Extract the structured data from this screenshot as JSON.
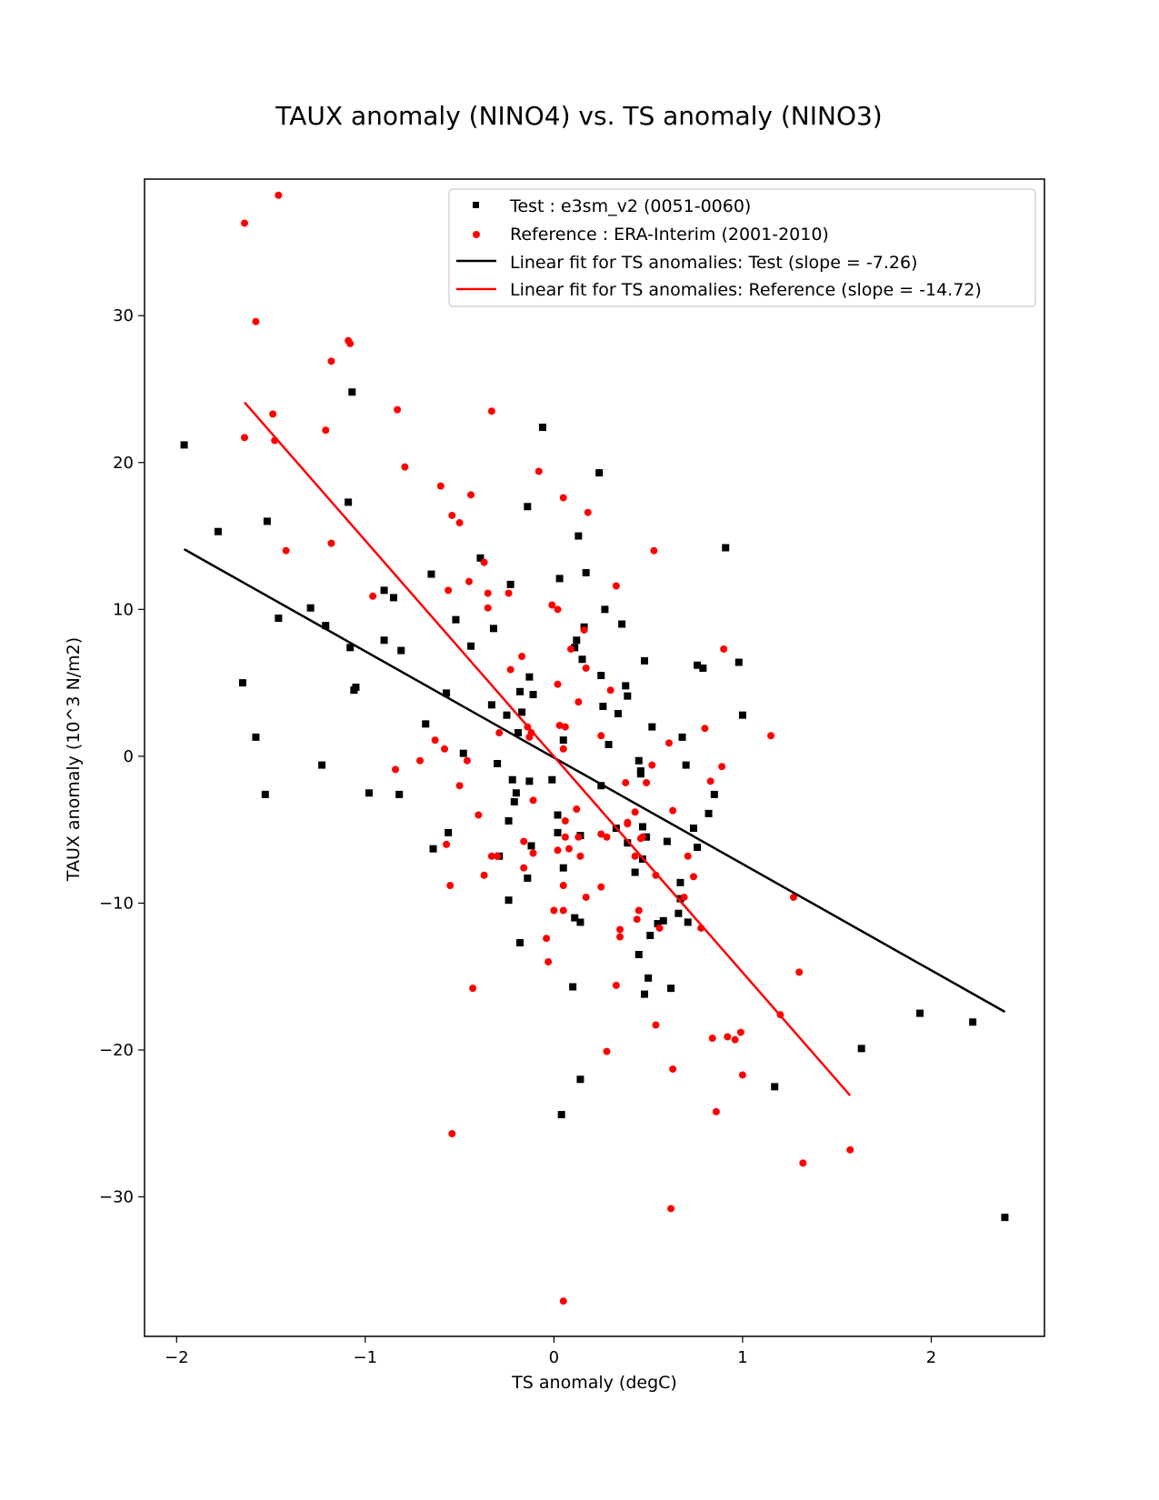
{
  "chart_data": {
    "type": "scatter",
    "title": "TAUX anomaly (NINO4) vs. TS anomaly (NINO3)",
    "xlabel": "TS anomaly (degC)",
    "ylabel": "TAUX anomaly (10^3 N/m2)",
    "xlim": [
      -2.17,
      2.6
    ],
    "ylim": [
      -39.5,
      39.3
    ],
    "xticks": [
      -2,
      -1,
      0,
      1,
      2
    ],
    "xtick_labels": [
      "−2",
      "−1",
      "0",
      "1",
      "2"
    ],
    "yticks": [
      -30,
      -20,
      -10,
      0,
      10,
      20,
      30
    ],
    "ytick_labels": [
      "−30",
      "−20",
      "−10",
      "0",
      "10",
      "20",
      "30"
    ],
    "grid": false,
    "legend_position": "top-right",
    "series": [
      {
        "name": "Test : e3sm_v2 (0051-0060)",
        "color": "#000000",
        "marker": "square",
        "points": [
          [
            -1.96,
            21.2
          ],
          [
            -1.78,
            15.3
          ],
          [
            -1.65,
            5.0
          ],
          [
            -1.58,
            1.3
          ],
          [
            -1.53,
            -2.6
          ],
          [
            -1.52,
            16.0
          ],
          [
            -1.46,
            9.4
          ],
          [
            -1.29,
            10.1
          ],
          [
            -1.23,
            -0.6
          ],
          [
            -1.21,
            8.9
          ],
          [
            -1.09,
            17.3
          ],
          [
            -1.08,
            7.4
          ],
          [
            -1.07,
            24.8
          ],
          [
            -1.06,
            4.5
          ],
          [
            -1.05,
            4.7
          ],
          [
            -0.98,
            -2.5
          ],
          [
            -0.9,
            7.9
          ],
          [
            -0.9,
            11.3
          ],
          [
            -0.85,
            10.8
          ],
          [
            -0.82,
            -2.6
          ],
          [
            -0.81,
            7.2
          ],
          [
            -0.68,
            2.2
          ],
          [
            -0.65,
            12.4
          ],
          [
            -0.64,
            -6.3
          ],
          [
            -0.57,
            4.3
          ],
          [
            -0.56,
            -5.2
          ],
          [
            -0.52,
            9.3
          ],
          [
            -0.48,
            0.2
          ],
          [
            -0.44,
            7.5
          ],
          [
            -0.39,
            13.5
          ],
          [
            -0.33,
            3.5
          ],
          [
            -0.32,
            8.7
          ],
          [
            -0.3,
            -0.5
          ],
          [
            -0.29,
            -6.8
          ],
          [
            -0.25,
            2.8
          ],
          [
            -0.24,
            -4.4
          ],
          [
            -0.24,
            -9.8
          ],
          [
            -0.23,
            11.7
          ],
          [
            -0.22,
            -1.6
          ],
          [
            -0.2,
            -2.5
          ],
          [
            -0.21,
            -3.1
          ],
          [
            -0.19,
            1.6
          ],
          [
            -0.18,
            4.4
          ],
          [
            -0.18,
            -12.7
          ],
          [
            -0.17,
            3.0
          ],
          [
            -0.14,
            17.0
          ],
          [
            -0.14,
            -8.3
          ],
          [
            -0.13,
            5.4
          ],
          [
            -0.13,
            -1.7
          ],
          [
            -0.12,
            -6.1
          ],
          [
            -0.11,
            4.2
          ],
          [
            -0.06,
            22.4
          ],
          [
            -0.01,
            -1.6
          ],
          [
            0.02,
            -4.0
          ],
          [
            0.02,
            -5.2
          ],
          [
            0.03,
            12.1
          ],
          [
            0.04,
            -24.4
          ],
          [
            0.05,
            1.1
          ],
          [
            0.05,
            -7.6
          ],
          [
            0.1,
            -15.7
          ],
          [
            0.11,
            -11.0
          ],
          [
            0.11,
            7.4
          ],
          [
            0.12,
            7.9
          ],
          [
            0.13,
            15.0
          ],
          [
            0.14,
            -11.3
          ],
          [
            0.14,
            -5.4
          ],
          [
            0.15,
            6.6
          ],
          [
            0.14,
            -22.0
          ],
          [
            0.16,
            8.8
          ],
          [
            0.17,
            12.5
          ],
          [
            0.24,
            19.3
          ],
          [
            0.25,
            -2.0
          ],
          [
            0.25,
            5.5
          ],
          [
            0.26,
            3.4
          ],
          [
            0.27,
            10.0
          ],
          [
            0.29,
            0.8
          ],
          [
            0.33,
            -4.9
          ],
          [
            0.34,
            2.9
          ],
          [
            0.36,
            9.0
          ],
          [
            0.38,
            4.8
          ],
          [
            0.39,
            -5.9
          ],
          [
            0.39,
            4.1
          ],
          [
            0.43,
            -7.9
          ],
          [
            0.45,
            -0.3
          ],
          [
            0.45,
            -13.5
          ],
          [
            0.46,
            -1.0
          ],
          [
            0.46,
            -1.2
          ],
          [
            0.47,
            -7.0
          ],
          [
            0.47,
            -4.8
          ],
          [
            0.48,
            6.5
          ],
          [
            0.48,
            -16.2
          ],
          [
            0.49,
            -5.5
          ],
          [
            0.5,
            -15.1
          ],
          [
            0.51,
            -12.2
          ],
          [
            0.52,
            2.0
          ],
          [
            0.55,
            -11.4
          ],
          [
            0.58,
            -11.2
          ],
          [
            0.6,
            -5.8
          ],
          [
            0.62,
            -15.8
          ],
          [
            0.66,
            -10.7
          ],
          [
            0.67,
            -9.7
          ],
          [
            0.67,
            -8.6
          ],
          [
            0.68,
            1.3
          ],
          [
            0.7,
            -0.6
          ],
          [
            0.71,
            -11.3
          ],
          [
            0.74,
            -4.9
          ],
          [
            0.76,
            -6.2
          ],
          [
            0.76,
            6.2
          ],
          [
            0.79,
            6.0
          ],
          [
            0.82,
            -3.9
          ],
          [
            0.85,
            -2.6
          ],
          [
            0.91,
            14.2
          ],
          [
            0.98,
            6.4
          ],
          [
            1.0,
            2.8
          ],
          [
            1.17,
            -22.5
          ],
          [
            1.63,
            -19.9
          ],
          [
            1.94,
            -17.5
          ],
          [
            2.22,
            -18.1
          ],
          [
            2.39,
            -31.4
          ]
        ]
      },
      {
        "name": "Reference : ERA-Interim (2001-2010)",
        "color": "#ff0000",
        "marker": "circle",
        "points": [
          [
            -1.64,
            36.3
          ],
          [
            -1.64,
            21.7
          ],
          [
            -1.58,
            29.6
          ],
          [
            -1.49,
            23.3
          ],
          [
            -1.48,
            21.5
          ],
          [
            -1.42,
            14.0
          ],
          [
            -1.46,
            38.2
          ],
          [
            -1.18,
            26.9
          ],
          [
            -1.18,
            14.5
          ],
          [
            -1.21,
            22.2
          ],
          [
            -1.09,
            28.3
          ],
          [
            -1.08,
            28.1
          ],
          [
            -0.96,
            10.9
          ],
          [
            -0.83,
            23.6
          ],
          [
            -0.84,
            -0.9
          ],
          [
            -0.79,
            19.7
          ],
          [
            -0.71,
            -0.3
          ],
          [
            -0.63,
            1.1
          ],
          [
            -0.6,
            18.4
          ],
          [
            -0.58,
            0.5
          ],
          [
            -0.57,
            -6.0
          ],
          [
            -0.56,
            11.3
          ],
          [
            -0.55,
            -8.8
          ],
          [
            -0.54,
            16.4
          ],
          [
            -0.54,
            -25.7
          ],
          [
            -0.5,
            15.9
          ],
          [
            -0.5,
            -2.0
          ],
          [
            -0.46,
            -0.3
          ],
          [
            -0.45,
            11.9
          ],
          [
            -0.44,
            17.8
          ],
          [
            -0.43,
            -15.8
          ],
          [
            -0.4,
            -4.0
          ],
          [
            -0.37,
            13.2
          ],
          [
            -0.37,
            -8.1
          ],
          [
            -0.35,
            11.1
          ],
          [
            -0.35,
            10.1
          ],
          [
            -0.33,
            23.5
          ],
          [
            -0.33,
            -6.8
          ],
          [
            -0.3,
            -6.8
          ],
          [
            -0.29,
            1.6
          ],
          [
            -0.24,
            11.1
          ],
          [
            -0.23,
            5.9
          ],
          [
            -0.17,
            6.8
          ],
          [
            -0.16,
            -7.6
          ],
          [
            -0.16,
            -5.8
          ],
          [
            -0.14,
            2.0
          ],
          [
            -0.13,
            1.3
          ],
          [
            -0.12,
            1.6
          ],
          [
            -0.11,
            -3.0
          ],
          [
            -0.11,
            -6.6
          ],
          [
            -0.08,
            19.4
          ],
          [
            -0.04,
            -12.4
          ],
          [
            -0.03,
            -14.0
          ],
          [
            -0.01,
            10.3
          ],
          [
            0.0,
            -10.5
          ],
          [
            0.02,
            10.0
          ],
          [
            0.02,
            4.9
          ],
          [
            0.02,
            -6.4
          ],
          [
            0.03,
            2.1
          ],
          [
            0.05,
            17.6
          ],
          [
            0.05,
            0.5
          ],
          [
            0.06,
            -4.4
          ],
          [
            0.06,
            -5.5
          ],
          [
            0.05,
            -8.8
          ],
          [
            0.05,
            -10.5
          ],
          [
            0.06,
            2.0
          ],
          [
            0.08,
            -6.3
          ],
          [
            0.09,
            7.3
          ],
          [
            0.05,
            -37.1
          ],
          [
            0.12,
            -3.6
          ],
          [
            0.13,
            -5.5
          ],
          [
            0.13,
            3.7
          ],
          [
            0.14,
            -6.8
          ],
          [
            0.16,
            8.6
          ],
          [
            0.17,
            -9.6
          ],
          [
            0.17,
            6.0
          ],
          [
            0.18,
            16.6
          ],
          [
            0.25,
            1.4
          ],
          [
            0.25,
            -5.3
          ],
          [
            0.25,
            -8.9
          ],
          [
            0.28,
            -5.5
          ],
          [
            0.28,
            -20.1
          ],
          [
            0.3,
            4.5
          ],
          [
            0.33,
            11.6
          ],
          [
            0.33,
            -15.6
          ],
          [
            0.35,
            -12.3
          ],
          [
            0.35,
            -11.8
          ],
          [
            0.38,
            -1.8
          ],
          [
            0.39,
            -4.5
          ],
          [
            0.39,
            -4.6
          ],
          [
            0.43,
            -6.8
          ],
          [
            0.43,
            -3.8
          ],
          [
            0.44,
            -11.1
          ],
          [
            0.45,
            -10.5
          ],
          [
            0.46,
            -5.6
          ],
          [
            0.47,
            -5.5
          ],
          [
            0.49,
            -1.8
          ],
          [
            0.52,
            -0.6
          ],
          [
            0.53,
            14.0
          ],
          [
            0.54,
            -8.1
          ],
          [
            0.54,
            -18.3
          ],
          [
            0.56,
            -11.7
          ],
          [
            0.61,
            0.9
          ],
          [
            0.62,
            -30.8
          ],
          [
            0.63,
            -3.7
          ],
          [
            0.63,
            -21.3
          ],
          [
            0.69,
            -9.6
          ],
          [
            0.71,
            -6.8
          ],
          [
            0.74,
            -8.2
          ],
          [
            0.78,
            -11.7
          ],
          [
            0.8,
            1.9
          ],
          [
            0.83,
            -1.7
          ],
          [
            0.84,
            -19.2
          ],
          [
            0.86,
            -24.2
          ],
          [
            0.89,
            -0.7
          ],
          [
            0.9,
            7.3
          ],
          [
            0.92,
            -19.1
          ],
          [
            0.96,
            -19.3
          ],
          [
            0.99,
            -18.8
          ],
          [
            1.0,
            -21.7
          ],
          [
            1.15,
            1.4
          ],
          [
            1.2,
            -17.6
          ],
          [
            1.27,
            -9.6
          ],
          [
            1.3,
            -14.7
          ],
          [
            1.32,
            -27.7
          ],
          [
            1.57,
            -26.8
          ]
        ]
      }
    ],
    "fits": [
      {
        "name": "Linear fit for TS anomalies: Test (slope = -7.26)",
        "color": "#000000",
        "x": [
          -1.96,
          2.39
        ],
        "y": [
          14.1,
          -17.4
        ]
      },
      {
        "name": "Linear fit for TS anomalies: Reference (slope = -14.72)",
        "color": "#ff0000",
        "x": [
          -1.64,
          1.57
        ],
        "y": [
          24.1,
          -23.1
        ]
      }
    ]
  }
}
